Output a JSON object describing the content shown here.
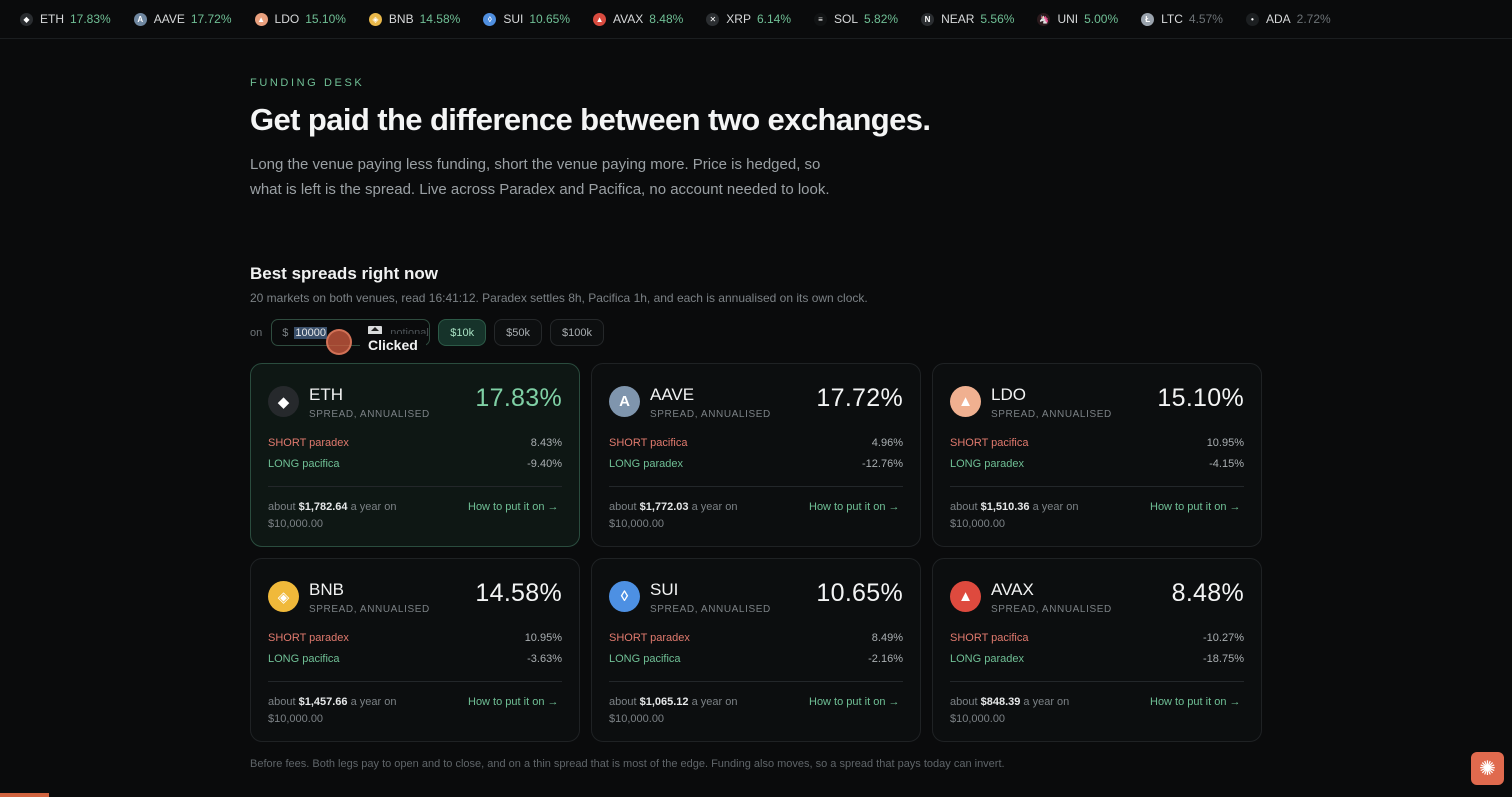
{
  "ticker": [
    {
      "symbol": "ETH",
      "pct": "17.83%",
      "color": "#2a2d30",
      "glyph": "◆",
      "dim": false
    },
    {
      "symbol": "AAVE",
      "pct": "17.72%",
      "color": "#6f87a0",
      "glyph": "A",
      "dim": false
    },
    {
      "symbol": "LDO",
      "pct": "15.10%",
      "color": "#e9a07e",
      "glyph": "▲",
      "dim": false
    },
    {
      "symbol": "BNB",
      "pct": "14.58%",
      "color": "#e9b84a",
      "glyph": "◈",
      "dim": false
    },
    {
      "symbol": "SUI",
      "pct": "10.65%",
      "color": "#4f8fe0",
      "glyph": "◊",
      "dim": false
    },
    {
      "symbol": "AVAX",
      "pct": "8.48%",
      "color": "#d94b3f",
      "glyph": "▲",
      "dim": false
    },
    {
      "symbol": "XRP",
      "pct": "6.14%",
      "color": "#2b2e31",
      "glyph": "✕",
      "dim": false
    },
    {
      "symbol": "SOL",
      "pct": "5.82%",
      "color": "#111314",
      "glyph": "≡",
      "dim": false
    },
    {
      "symbol": "NEAR",
      "pct": "5.56%",
      "color": "#2b2e31",
      "glyph": "N",
      "dim": false
    },
    {
      "symbol": "UNI",
      "pct": "5.00%",
      "color": "#2b1a1d",
      "glyph": "🦄",
      "dim": false
    },
    {
      "symbol": "LTC",
      "pct": "4.57%",
      "color": "#9aa3ad",
      "glyph": "Ł",
      "dim": true
    },
    {
      "symbol": "ADA",
      "pct": "2.72%",
      "color": "#1c1f21",
      "glyph": "•",
      "dim": true
    }
  ],
  "eyebrow": "FUNDING DESK",
  "headline": "Get paid the difference between two exchanges.",
  "lede": "Long the venue paying less funding, short the venue paying more. Price is hedged, so what is left is the spread. Live across Paradex and Pacifica, no account needed to look.",
  "section": {
    "title": "Best spreads right now",
    "subtitle": "20 markets on both venues, read 16:41:12. Paradex settles 8h, Pacifica 1h, and each is annualised on its own clock."
  },
  "controls": {
    "on_label": "on",
    "currency": "$",
    "amount": "10000",
    "unit": "notional",
    "presets": [
      "$10k",
      "$50k",
      "$100k"
    ],
    "active_preset": "$10k"
  },
  "overlay": {
    "clicked_label": "Clicked"
  },
  "cards": [
    {
      "symbol": "ETH",
      "sub": "SPREAD, ANNUALISED",
      "pct": "17.83%",
      "short_venue": "SHORT paradex",
      "short_val": "8.43%",
      "long_venue": "LONG pacifica",
      "long_val": "-9.40%",
      "about_pre": "about ",
      "amount": "$1,782.64",
      "about_post": " a year on $10,000.00",
      "howto": "How to put it on →",
      "coin_color": "#26292c",
      "glyph": "◆",
      "featured": true
    },
    {
      "symbol": "AAVE",
      "sub": "SPREAD, ANNUALISED",
      "pct": "17.72%",
      "short_venue": "SHORT pacifica",
      "short_val": "4.96%",
      "long_venue": "LONG paradex",
      "long_val": "-12.76%",
      "about_pre": "about ",
      "amount": "$1,772.03",
      "about_post": " a year on $10,000.00",
      "howto": "How to put it on →",
      "coin_color": "#7f95ad",
      "glyph": "A",
      "featured": false
    },
    {
      "symbol": "LDO",
      "sub": "SPREAD, ANNUALISED",
      "pct": "15.10%",
      "short_venue": "SHORT pacifica",
      "short_val": "10.95%",
      "long_venue": "LONG paradex",
      "long_val": "-4.15%",
      "about_pre": "about ",
      "amount": "$1,510.36",
      "about_post": " a year on $10,000.00",
      "howto": "How to put it on →",
      "coin_color": "#f0b090",
      "glyph": "▲",
      "featured": false
    },
    {
      "symbol": "BNB",
      "sub": "SPREAD, ANNUALISED",
      "pct": "14.58%",
      "short_venue": "SHORT paradex",
      "short_val": "10.95%",
      "long_venue": "LONG pacifica",
      "long_val": "-3.63%",
      "about_pre": "about ",
      "amount": "$1,457.66",
      "about_post": " a year on $10,000.00",
      "howto": "How to put it on →",
      "coin_color": "#f0b93a",
      "glyph": "◈",
      "featured": false
    },
    {
      "symbol": "SUI",
      "sub": "SPREAD, ANNUALISED",
      "pct": "10.65%",
      "short_venue": "SHORT paradex",
      "short_val": "8.49%",
      "long_venue": "LONG pacifica",
      "long_val": "-2.16%",
      "about_pre": "about ",
      "amount": "$1,065.12",
      "about_post": " a year on $10,000.00",
      "howto": "How to put it on →",
      "coin_color": "#4d90e3",
      "glyph": "◊",
      "featured": false
    },
    {
      "symbol": "AVAX",
      "sub": "SPREAD, ANNUALISED",
      "pct": "8.48%",
      "short_venue": "SHORT pacifica",
      "short_val": "-10.27%",
      "long_venue": "LONG paradex",
      "long_val": "-18.75%",
      "about_pre": "about ",
      "amount": "$848.39",
      "about_post": " a year on $10,000.00",
      "howto": "How to put it on →",
      "coin_color": "#de4a3e",
      "glyph": "▲",
      "featured": false
    }
  ],
  "footnote": "Before fees. Both legs pay to open and to close, and on a thin spread that is most of the edge. Funding also moves, so a spread that pays today can invert.",
  "fab_icon": "✺"
}
